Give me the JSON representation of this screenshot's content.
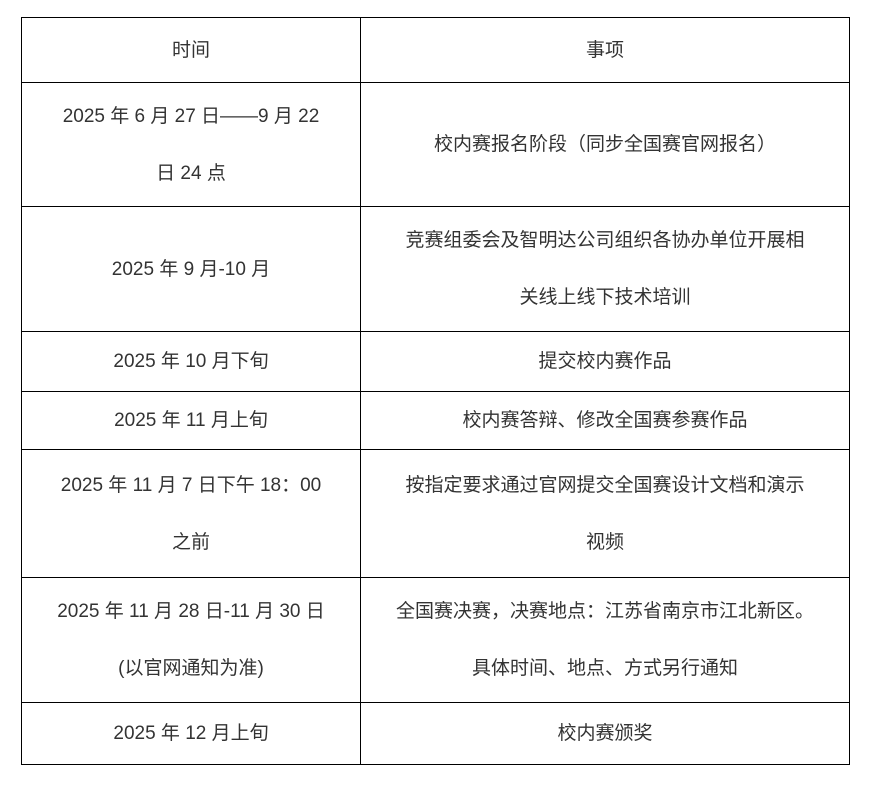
{
  "page": {
    "background_color": "#ffffff"
  },
  "table": {
    "colors": {
      "text": "#333333",
      "border": "#000000"
    },
    "header": {
      "time_label": "时间",
      "item_label": "事项"
    },
    "rows": [
      {
        "time": [
          "2025 年 6 月 27 日——9 月 22",
          "日 24 点"
        ],
        "item": [
          "校内赛报名阶段（同步全国赛官网报名）"
        ]
      },
      {
        "time": [
          "2025 年 9 月-10 月"
        ],
        "item": [
          "竞赛组委会及智明达公司组织各协办单位开展相",
          "关线上线下技术培训"
        ]
      },
      {
        "time": [
          "2025 年 10 月下旬"
        ],
        "item": [
          "提交校内赛作品"
        ]
      },
      {
        "time": [
          "2025 年 11 月上旬"
        ],
        "item": [
          "校内赛答辩、修改全国赛参赛作品"
        ]
      },
      {
        "time": [
          "2025 年 11 月 7 日下午 18：00",
          "之前"
        ],
        "item": [
          "按指定要求通过官网提交全国赛设计文档和演示",
          "视频"
        ]
      },
      {
        "time": [
          "2025 年 11 月 28 日-11 月 30 日",
          "(以官网通知为准)"
        ],
        "item": [
          "全国赛决赛，决赛地点：江苏省南京市江北新区。",
          "具体时间、地点、方式另行通知"
        ]
      },
      {
        "time": [
          "2025 年 12 月上旬"
        ],
        "item": [
          "校内赛颁奖"
        ]
      }
    ]
  }
}
